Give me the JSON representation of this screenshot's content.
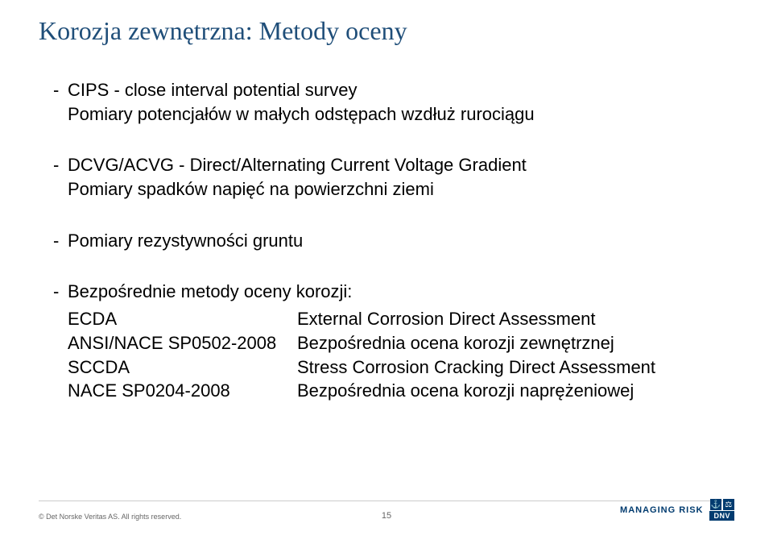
{
  "slide": {
    "title": "Korozja zewnętrzna: Metody oceny",
    "bullets": [
      {
        "main": "CIPS - close interval potential survey",
        "sub": "Pomiary potencjałów w małych odstępach wzdłuż rurociągu"
      },
      {
        "main": "DCVG/ACVG - Direct/Alternating Current Voltage Gradient",
        "sub": "Pomiary spadków napięć na powierzchni ziemi"
      },
      {
        "main": "Pomiary rezystywności gruntu",
        "sub": null
      }
    ],
    "methodsHeader": "Bezpośrednie metody oceny korozji:",
    "methods": [
      {
        "left": "ECDA",
        "right": "External Corrosion Direct Assessment"
      },
      {
        "left": " ANSI/NACE SP0502-2008",
        "right": "Bezpośrednia ocena korozji zewnętrznej"
      },
      {
        "left": "SCCDA",
        "right": "Stress Corrosion Cracking Direct Assessment"
      },
      {
        "left": " NACE SP0204-2008",
        "right": "Bezpośrednia ocena korozji naprężeniowej"
      }
    ]
  },
  "footer": {
    "copyright": "© Det Norske Veritas AS. All rights reserved.",
    "pageNumber": "15",
    "tagline": "MANAGING RISK",
    "logoText": "DNV"
  },
  "colors": {
    "title": "#1f4e79",
    "text": "#000000",
    "footerText": "#666666",
    "brand": "#003b6f",
    "divider": "#cccccc",
    "background": "#ffffff"
  },
  "typography": {
    "titleFontSize": 32,
    "bodyFontSize": 22,
    "footerSmall": 9,
    "footerPage": 11
  }
}
